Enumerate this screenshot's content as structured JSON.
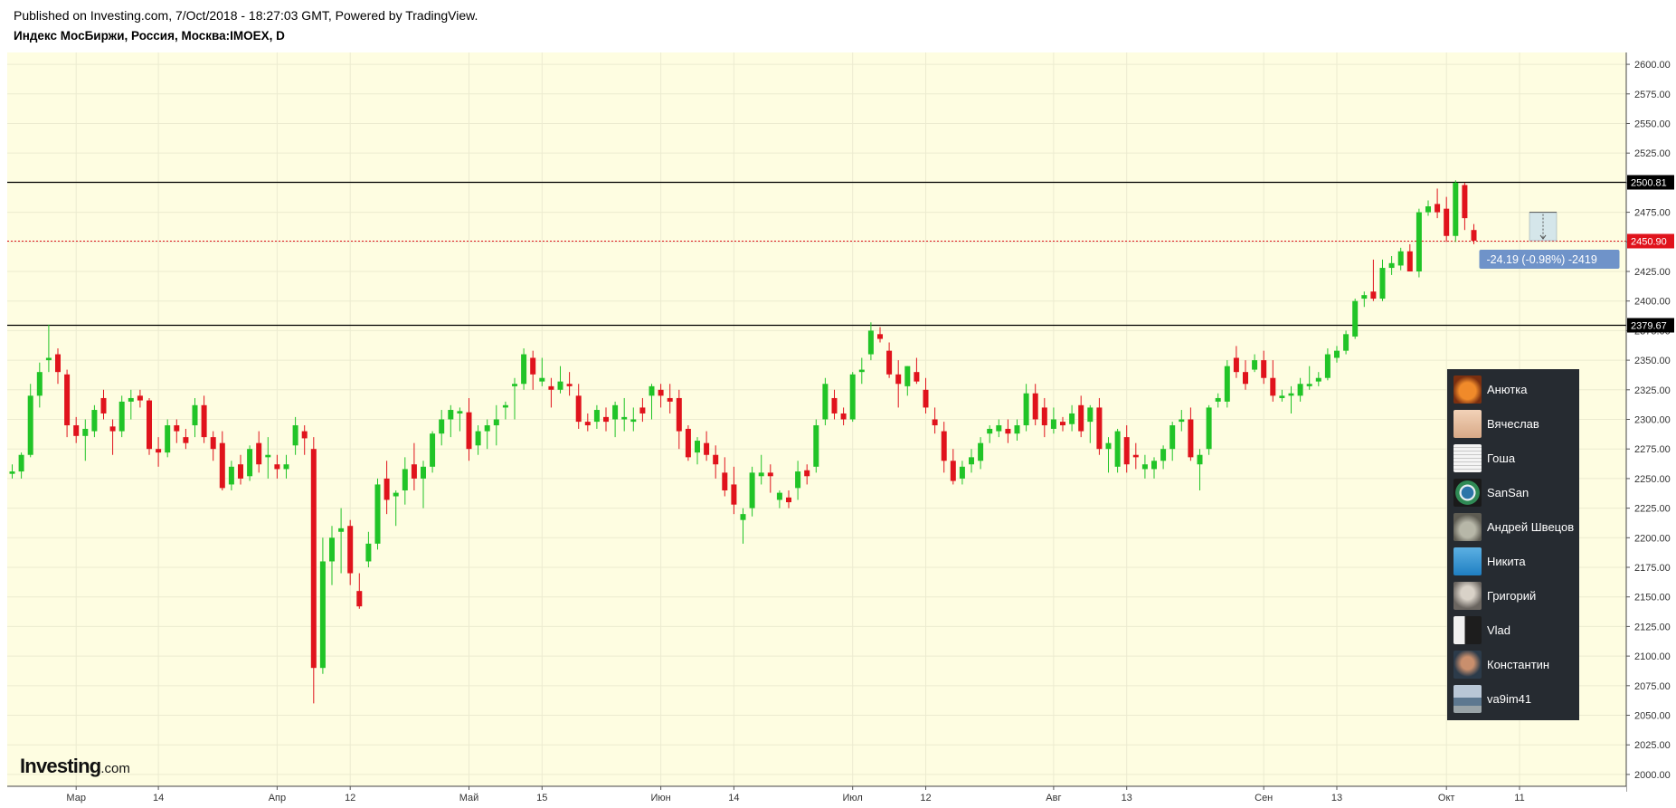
{
  "header": {
    "published": "Published on Investing.com, 7/Oct/2018 - 18:27:03 GMT, Powered by TradingView.",
    "symbol": "Индекс МосБиржи, Россия, Москва:IMOEX, D"
  },
  "logo": {
    "main": "Investing",
    "suffix": ".com"
  },
  "colors": {
    "background": "#fefde1",
    "up": "#21c427",
    "down": "#e0131c",
    "price_label": "#e0131c",
    "level_line": "#000000",
    "measure_label": "#6f93c9",
    "user_panel": "#262b31"
  },
  "chart_data": {
    "type": "candlestick",
    "title": "Индекс МосБиржи, Россия, Москва:IMOEX, D",
    "ylim": [
      1990,
      2610
    ],
    "y_ticks": [
      "2600.00",
      "2575.00",
      "2550.00",
      "2525.00",
      "2500.00",
      "2475.00",
      "2450.00",
      "2425.00",
      "2400.00",
      "2375.00",
      "2350.00",
      "2325.00",
      "2300.00",
      "2275.00",
      "2250.00",
      "2225.00",
      "2200.00",
      "2175.00",
      "2150.00",
      "2125.00",
      "2100.00",
      "2075.00",
      "2050.00",
      "2025.00",
      "2000.00"
    ],
    "x_ticks": [
      {
        "label": "Мар",
        "bar": 7
      },
      {
        "label": "14",
        "bar": 16
      },
      {
        "label": "Апр",
        "bar": 29
      },
      {
        "label": "12",
        "bar": 37
      },
      {
        "label": "Май",
        "bar": 50
      },
      {
        "label": "15",
        "bar": 58
      },
      {
        "label": "Июн",
        "bar": 71
      },
      {
        "label": "14",
        "bar": 79
      },
      {
        "label": "Июл",
        "bar": 92
      },
      {
        "label": "12",
        "bar": 100
      },
      {
        "label": "Авг",
        "bar": 114
      },
      {
        "label": "13",
        "bar": 122
      },
      {
        "label": "Сен",
        "bar": 137
      },
      {
        "label": "13",
        "bar": 145
      },
      {
        "label": "Окт",
        "bar": 157
      },
      {
        "label": "11",
        "bar": 165
      }
    ],
    "horizontal_lines": [
      {
        "value": 2500.81,
        "label": "2500.81",
        "style": "solid"
      },
      {
        "value": 2379.67,
        "label": "2379.67",
        "style": "solid"
      }
    ],
    "last_price": {
      "value": 2450.9,
      "label": "2450.90"
    },
    "measure": {
      "label": "-24.19 (-0.98%) -2419",
      "from": 2475,
      "to": 2451
    },
    "ohlc": [
      [
        2254,
        2262,
        2250,
        2256
      ],
      [
        2256,
        2272,
        2250,
        2270
      ],
      [
        2270,
        2330,
        2268,
        2320
      ],
      [
        2320,
        2348,
        2310,
        2340
      ],
      [
        2350,
        2380,
        2340,
        2352
      ],
      [
        2355,
        2360,
        2330,
        2340
      ],
      [
        2338,
        2342,
        2285,
        2295
      ],
      [
        2295,
        2302,
        2280,
        2286
      ],
      [
        2286,
        2300,
        2265,
        2292
      ],
      [
        2290,
        2312,
        2285,
        2308
      ],
      [
        2318,
        2325,
        2300,
        2305
      ],
      [
        2294,
        2300,
        2270,
        2290
      ],
      [
        2290,
        2320,
        2285,
        2315
      ],
      [
        2315,
        2325,
        2300,
        2318
      ],
      [
        2320,
        2325,
        2310,
        2316
      ],
      [
        2316,
        2318,
        2270,
        2275
      ],
      [
        2275,
        2285,
        2260,
        2272
      ],
      [
        2272,
        2300,
        2268,
        2295
      ],
      [
        2295,
        2300,
        2280,
        2290
      ],
      [
        2285,
        2292,
        2275,
        2280
      ],
      [
        2295,
        2318,
        2285,
        2312
      ],
      [
        2312,
        2320,
        2280,
        2285
      ],
      [
        2285,
        2290,
        2265,
        2275
      ],
      [
        2280,
        2290,
        2240,
        2242
      ],
      [
        2245,
        2265,
        2240,
        2260
      ],
      [
        2262,
        2270,
        2245,
        2250
      ],
      [
        2252,
        2278,
        2248,
        2275
      ],
      [
        2280,
        2290,
        2255,
        2262
      ],
      [
        2268,
        2285,
        2250,
        2270
      ],
      [
        2262,
        2270,
        2250,
        2258
      ],
      [
        2258,
        2270,
        2250,
        2262
      ],
      [
        2278,
        2302,
        2270,
        2295
      ],
      [
        2290,
        2295,
        2270,
        2284
      ],
      [
        2275,
        2285,
        2060,
        2090
      ],
      [
        2090,
        2200,
        2085,
        2180
      ],
      [
        2180,
        2210,
        2160,
        2200
      ],
      [
        2205,
        2225,
        2170,
        2208
      ],
      [
        2210,
        2215,
        2160,
        2170
      ],
      [
        2155,
        2170,
        2140,
        2142
      ],
      [
        2180,
        2205,
        2175,
        2195
      ],
      [
        2195,
        2250,
        2190,
        2245
      ],
      [
        2250,
        2265,
        2220,
        2232
      ],
      [
        2235,
        2240,
        2210,
        2238
      ],
      [
        2240,
        2268,
        2228,
        2258
      ],
      [
        2262,
        2280,
        2240,
        2250
      ],
      [
        2250,
        2265,
        2225,
        2260
      ],
      [
        2260,
        2290,
        2255,
        2288
      ],
      [
        2288,
        2308,
        2278,
        2300
      ],
      [
        2300,
        2312,
        2285,
        2308
      ],
      [
        2305,
        2310,
        2290,
        2307
      ],
      [
        2306,
        2318,
        2265,
        2275
      ],
      [
        2278,
        2295,
        2270,
        2290
      ],
      [
        2290,
        2300,
        2275,
        2295
      ],
      [
        2295,
        2312,
        2278,
        2300
      ],
      [
        2310,
        2315,
        2300,
        2312
      ],
      [
        2328,
        2335,
        2300,
        2330
      ],
      [
        2330,
        2360,
        2325,
        2355
      ],
      [
        2352,
        2358,
        2325,
        2338
      ],
      [
        2332,
        2352,
        2328,
        2335
      ],
      [
        2328,
        2335,
        2310,
        2325
      ],
      [
        2325,
        2345,
        2322,
        2332
      ],
      [
        2330,
        2340,
        2320,
        2328
      ],
      [
        2320,
        2330,
        2292,
        2298
      ],
      [
        2298,
        2305,
        2290,
        2295
      ],
      [
        2298,
        2312,
        2292,
        2308
      ],
      [
        2302,
        2310,
        2290,
        2298
      ],
      [
        2300,
        2315,
        2285,
        2312
      ],
      [
        2300,
        2318,
        2290,
        2302
      ],
      [
        2298,
        2310,
        2290,
        2300
      ],
      [
        2310,
        2318,
        2298,
        2305
      ],
      [
        2320,
        2330,
        2300,
        2328
      ],
      [
        2325,
        2330,
        2310,
        2320
      ],
      [
        2318,
        2330,
        2305,
        2315
      ],
      [
        2318,
        2325,
        2275,
        2290
      ],
      [
        2292,
        2295,
        2265,
        2268
      ],
      [
        2272,
        2285,
        2262,
        2282
      ],
      [
        2280,
        2290,
        2265,
        2270
      ],
      [
        2270,
        2278,
        2250,
        2262
      ],
      [
        2255,
        2268,
        2235,
        2240
      ],
      [
        2245,
        2260,
        2220,
        2228
      ],
      [
        2215,
        2225,
        2195,
        2220
      ],
      [
        2225,
        2260,
        2218,
        2255
      ],
      [
        2252,
        2270,
        2245,
        2255
      ],
      [
        2255,
        2262,
        2238,
        2252
      ],
      [
        2232,
        2240,
        2225,
        2238
      ],
      [
        2234,
        2240,
        2225,
        2230
      ],
      [
        2242,
        2265,
        2232,
        2256
      ],
      [
        2257,
        2262,
        2245,
        2252
      ],
      [
        2260,
        2300,
        2255,
        2295
      ],
      [
        2300,
        2335,
        2295,
        2330
      ],
      [
        2318,
        2325,
        2300,
        2305
      ],
      [
        2305,
        2310,
        2295,
        2300
      ],
      [
        2300,
        2340,
        2298,
        2338
      ],
      [
        2340,
        2352,
        2330,
        2342
      ],
      [
        2355,
        2382,
        2350,
        2375
      ],
      [
        2372,
        2378,
        2365,
        2368
      ],
      [
        2358,
        2365,
        2335,
        2338
      ],
      [
        2338,
        2350,
        2310,
        2330
      ],
      [
        2328,
        2345,
        2320,
        2345
      ],
      [
        2340,
        2352,
        2330,
        2332
      ],
      [
        2325,
        2335,
        2305,
        2310
      ],
      [
        2300,
        2310,
        2288,
        2295
      ],
      [
        2290,
        2298,
        2255,
        2265
      ],
      [
        2265,
        2275,
        2245,
        2248
      ],
      [
        2250,
        2265,
        2245,
        2260
      ],
      [
        2262,
        2275,
        2255,
        2268
      ],
      [
        2265,
        2285,
        2258,
        2280
      ],
      [
        2288,
        2295,
        2280,
        2292
      ],
      [
        2290,
        2300,
        2285,
        2295
      ],
      [
        2292,
        2300,
        2280,
        2288
      ],
      [
        2288,
        2300,
        2282,
        2295
      ],
      [
        2295,
        2330,
        2290,
        2322
      ],
      [
        2322,
        2330,
        2295,
        2300
      ],
      [
        2310,
        2318,
        2285,
        2295
      ],
      [
        2292,
        2310,
        2288,
        2300
      ],
      [
        2298,
        2302,
        2290,
        2295
      ],
      [
        2296,
        2312,
        2290,
        2305
      ],
      [
        2312,
        2320,
        2285,
        2290
      ],
      [
        2298,
        2312,
        2280,
        2310
      ],
      [
        2310,
        2318,
        2270,
        2275
      ],
      [
        2275,
        2285,
        2255,
        2280
      ],
      [
        2260,
        2292,
        2255,
        2290
      ],
      [
        2285,
        2295,
        2255,
        2262
      ],
      [
        2270,
        2280,
        2258,
        2268
      ],
      [
        2258,
        2270,
        2250,
        2262
      ],
      [
        2258,
        2268,
        2250,
        2265
      ],
      [
        2265,
        2278,
        2258,
        2275
      ],
      [
        2275,
        2298,
        2265,
        2295
      ],
      [
        2298,
        2308,
        2290,
        2300
      ],
      [
        2300,
        2310,
        2265,
        2268
      ],
      [
        2262,
        2275,
        2240,
        2270
      ],
      [
        2275,
        2312,
        2270,
        2310
      ],
      [
        2315,
        2322,
        2310,
        2318
      ],
      [
        2315,
        2350,
        2310,
        2345
      ],
      [
        2352,
        2362,
        2335,
        2340
      ],
      [
        2340,
        2350,
        2325,
        2330
      ],
      [
        2342,
        2355,
        2340,
        2350
      ],
      [
        2350,
        2358,
        2330,
        2335
      ],
      [
        2335,
        2350,
        2315,
        2320
      ],
      [
        2318,
        2325,
        2315,
        2320
      ],
      [
        2320,
        2328,
        2305,
        2322
      ],
      [
        2320,
        2335,
        2315,
        2330
      ],
      [
        2328,
        2345,
        2325,
        2330
      ],
      [
        2332,
        2340,
        2328,
        2335
      ],
      [
        2335,
        2360,
        2333,
        2355
      ],
      [
        2352,
        2362,
        2348,
        2358
      ],
      [
        2358,
        2375,
        2355,
        2372
      ],
      [
        2370,
        2402,
        2368,
        2400
      ],
      [
        2402,
        2408,
        2395,
        2405
      ],
      [
        2408,
        2435,
        2400,
        2402
      ],
      [
        2402,
        2435,
        2400,
        2428
      ],
      [
        2428,
        2438,
        2422,
        2432
      ],
      [
        2430,
        2445,
        2426,
        2442
      ],
      [
        2442,
        2448,
        2425,
        2425
      ],
      [
        2425,
        2478,
        2420,
        2475
      ],
      [
        2475,
        2485,
        2472,
        2480
      ],
      [
        2482,
        2495,
        2470,
        2475
      ],
      [
        2478,
        2488,
        2450,
        2455
      ],
      [
        2455,
        2502,
        2450,
        2500
      ],
      [
        2498,
        2500,
        2460,
        2470
      ],
      [
        2460,
        2465,
        2448,
        2451
      ]
    ]
  },
  "user_panel": {
    "users": [
      {
        "name": "Анютка",
        "avatar": "fox-avatar"
      },
      {
        "name": "Вячеслав",
        "avatar": "face-avatar"
      },
      {
        "name": "Гоша",
        "avatar": "document-avatar"
      },
      {
        "name": "SanSan",
        "avatar": "globe-avatar"
      },
      {
        "name": "Андрей Швецов",
        "avatar": "cat-avatar"
      },
      {
        "name": "Никита",
        "avatar": "plane-avatar"
      },
      {
        "name": "Григорий",
        "avatar": "portrait-avatar"
      },
      {
        "name": "Vlad",
        "avatar": "person-avatar"
      },
      {
        "name": "Константин",
        "avatar": "man-avatar"
      },
      {
        "name": "va9im41",
        "avatar": "landscape-avatar"
      }
    ]
  }
}
